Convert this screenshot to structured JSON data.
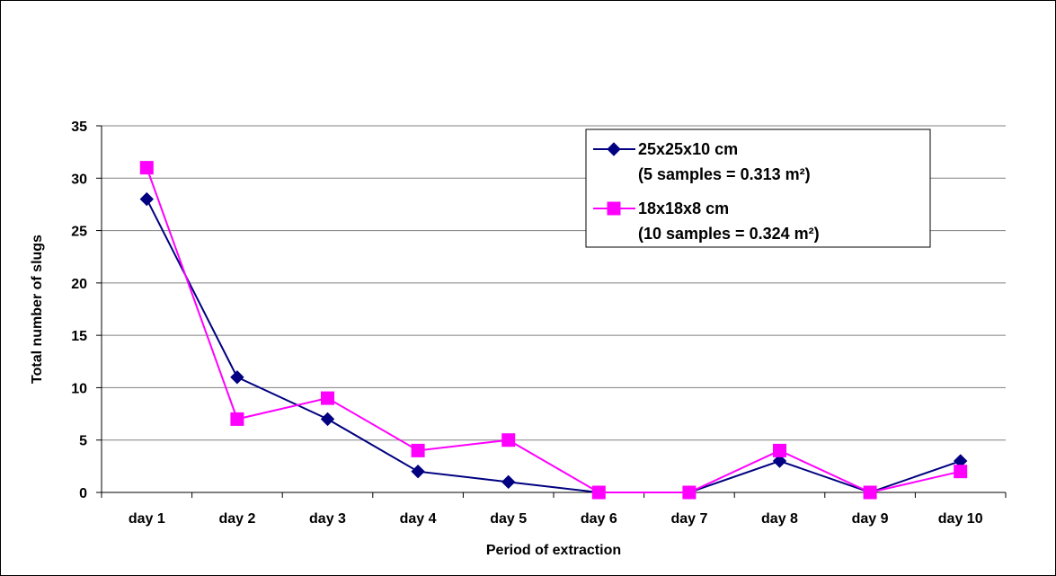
{
  "chart_data": {
    "type": "line",
    "title": "",
    "xlabel": "Period of extraction",
    "ylabel": "Total number of slugs",
    "categories": [
      "day 1",
      "day 2",
      "day 3",
      "day 4",
      "day 5",
      "day 6",
      "day 7",
      "day 8",
      "day 9",
      "day 10"
    ],
    "ylim": [
      0,
      35
    ],
    "yticks": [
      0,
      5,
      10,
      15,
      20,
      25,
      30,
      35
    ],
    "grid": "horizontal",
    "legend_position": "top-right",
    "series": [
      {
        "name": "25x25x10 cm",
        "name_line2": "(5 samples = 0.313 m²)",
        "color": "#000080",
        "marker": "diamond",
        "values": [
          28,
          11,
          7,
          2,
          1,
          0,
          0,
          3,
          0,
          3
        ]
      },
      {
        "name": "18x18x8 cm",
        "name_line2": "(10 samples = 0.324 m²)",
        "color": "#FF00FF",
        "marker": "square",
        "values": [
          31,
          7,
          9,
          4,
          5,
          0,
          0,
          4,
          0,
          2
        ]
      }
    ]
  }
}
